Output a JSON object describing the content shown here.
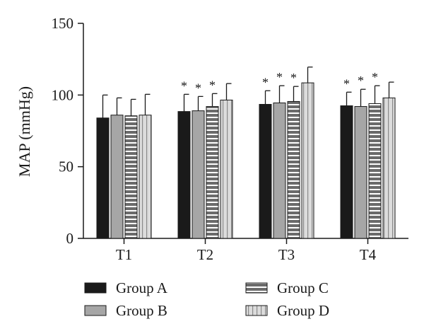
{
  "chart_data": {
    "type": "bar",
    "ylabel": "MAP (mmHg)",
    "xlabel": "",
    "ylim": [
      0,
      150
    ],
    "yticks": [
      0,
      50,
      100,
      150
    ],
    "categories": [
      "T1",
      "T2",
      "T3",
      "T4"
    ],
    "grid": false,
    "legend_position": "bottom",
    "series": [
      {
        "name": "Group A",
        "pattern": "solid-black",
        "color": "#1a1a1a",
        "values": [
          84,
          88.5,
          93.5,
          92.5
        ],
        "errors": [
          16,
          12,
          9.5,
          9.5
        ]
      },
      {
        "name": "Group B",
        "pattern": "solid-gray",
        "color": "#a6a6a6",
        "values": [
          86,
          89,
          94.5,
          92
        ],
        "errors": [
          12,
          10,
          12,
          12
        ]
      },
      {
        "name": "Group C",
        "pattern": "horizontal-stripes",
        "color": "#6b6b6b",
        "values": [
          85.5,
          92,
          95.5,
          94
        ],
        "errors": [
          11.5,
          9,
          10.5,
          12.5
        ]
      },
      {
        "name": "Group D",
        "pattern": "vertical-stripes",
        "color": "#dcdcdc",
        "values": [
          86,
          96.5,
          108.5,
          98
        ],
        "errors": [
          14.5,
          11.5,
          11,
          11
        ]
      }
    ],
    "annotations": [
      {
        "category": "T2",
        "series": "Group A",
        "text": "*"
      },
      {
        "category": "T2",
        "series": "Group B",
        "text": "*"
      },
      {
        "category": "T2",
        "series": "Group C",
        "text": "*"
      },
      {
        "category": "T3",
        "series": "Group A",
        "text": "*"
      },
      {
        "category": "T3",
        "series": "Group B",
        "text": "*"
      },
      {
        "category": "T3",
        "series": "Group C",
        "text": "*"
      },
      {
        "category": "T4",
        "series": "Group A",
        "text": "*"
      },
      {
        "category": "T4",
        "series": "Group B",
        "text": "*"
      },
      {
        "category": "T4",
        "series": "Group C",
        "text": "*"
      }
    ]
  }
}
